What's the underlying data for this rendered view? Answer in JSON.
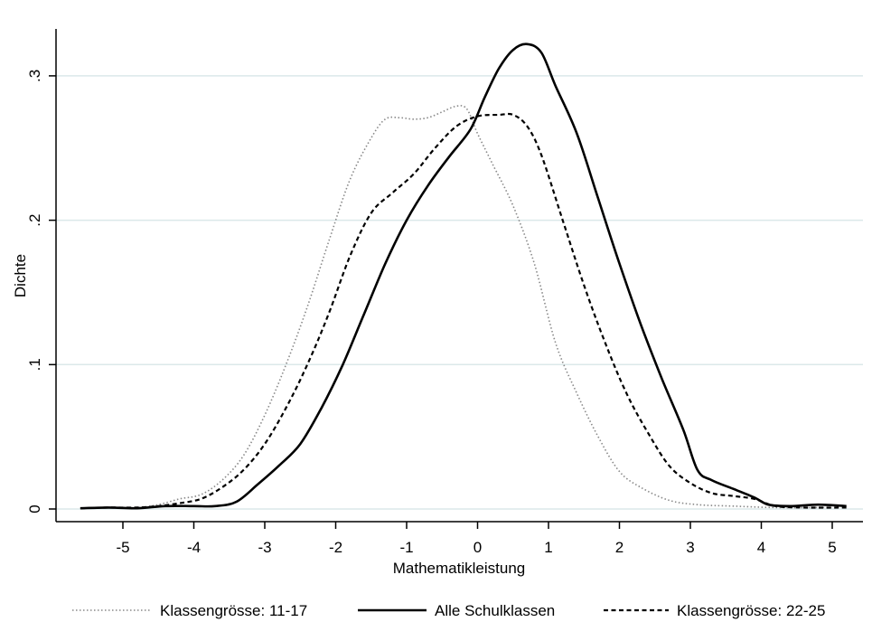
{
  "chart_data": {
    "type": "line",
    "title": "",
    "xlabel": "Mathematikleistung",
    "ylabel": "Dichte",
    "xlim": [
      -5.75,
      5.25
    ],
    "ylim": [
      0,
      0.33
    ],
    "x_ticks": [
      -5,
      -4,
      -3,
      -2,
      -1,
      0,
      1,
      2,
      3,
      4,
      5
    ],
    "x_tick_labels": [
      "-5",
      "-4",
      "-3",
      "-2",
      "-1",
      "0",
      "1",
      "2",
      "3",
      "4",
      "5"
    ],
    "y_ticks": [
      0,
      0.1,
      0.2,
      0.3
    ],
    "y_tick_labels": [
      "0",
      ".1",
      ".2",
      ".3"
    ],
    "grid": true,
    "legend_position": "bottom",
    "series": [
      {
        "name": "Klassengrösse: 11-17",
        "style": "dotted",
        "color": "#888888",
        "points": [
          [
            -5.6,
            0.0005
          ],
          [
            -5.2,
            0.001
          ],
          [
            -4.8,
            0.001
          ],
          [
            -4.5,
            0.003
          ],
          [
            -4.2,
            0.007
          ],
          [
            -3.9,
            0.01
          ],
          [
            -3.6,
            0.02
          ],
          [
            -3.3,
            0.037
          ],
          [
            -3.0,
            0.065
          ],
          [
            -2.7,
            0.1
          ],
          [
            -2.4,
            0.14
          ],
          [
            -2.1,
            0.185
          ],
          [
            -1.8,
            0.228
          ],
          [
            -1.5,
            0.257
          ],
          [
            -1.3,
            0.27
          ],
          [
            -1.1,
            0.271
          ],
          [
            -0.9,
            0.27
          ],
          [
            -0.7,
            0.271
          ],
          [
            -0.5,
            0.275
          ],
          [
            -0.3,
            0.279
          ],
          [
            -0.15,
            0.277
          ],
          [
            0.0,
            0.26
          ],
          [
            0.2,
            0.24
          ],
          [
            0.5,
            0.21
          ],
          [
            0.8,
            0.17
          ],
          [
            1.1,
            0.115
          ],
          [
            1.4,
            0.08
          ],
          [
            1.7,
            0.05
          ],
          [
            2.0,
            0.026
          ],
          [
            2.3,
            0.015
          ],
          [
            2.7,
            0.006
          ],
          [
            3.1,
            0.003
          ],
          [
            3.6,
            0.002
          ],
          [
            4.2,
            0.001
          ],
          [
            5.0,
            0.001
          ]
        ]
      },
      {
        "name": "Alle Schulklassen",
        "style": "solid",
        "color": "#000000",
        "points": [
          [
            -5.6,
            0.0005
          ],
          [
            -5.2,
            0.001
          ],
          [
            -4.8,
            0.0005
          ],
          [
            -4.4,
            0.002
          ],
          [
            -4.0,
            0.002
          ],
          [
            -3.7,
            0.002
          ],
          [
            -3.4,
            0.005
          ],
          [
            -3.1,
            0.017
          ],
          [
            -2.8,
            0.03
          ],
          [
            -2.5,
            0.045
          ],
          [
            -2.2,
            0.07
          ],
          [
            -1.9,
            0.1
          ],
          [
            -1.6,
            0.135
          ],
          [
            -1.3,
            0.17
          ],
          [
            -1.0,
            0.2
          ],
          [
            -0.7,
            0.224
          ],
          [
            -0.4,
            0.244
          ],
          [
            -0.1,
            0.263
          ],
          [
            0.1,
            0.285
          ],
          [
            0.3,
            0.305
          ],
          [
            0.5,
            0.318
          ],
          [
            0.7,
            0.322
          ],
          [
            0.9,
            0.316
          ],
          [
            1.1,
            0.293
          ],
          [
            1.4,
            0.26
          ],
          [
            1.7,
            0.215
          ],
          [
            2.0,
            0.17
          ],
          [
            2.3,
            0.128
          ],
          [
            2.6,
            0.09
          ],
          [
            2.9,
            0.055
          ],
          [
            3.1,
            0.027
          ],
          [
            3.3,
            0.02
          ],
          [
            3.6,
            0.014
          ],
          [
            3.9,
            0.008
          ],
          [
            4.1,
            0.003
          ],
          [
            4.4,
            0.002
          ],
          [
            4.8,
            0.003
          ],
          [
            5.2,
            0.002
          ]
        ]
      },
      {
        "name": "Klassengrösse: 22-25",
        "style": "dashed",
        "color": "#000000",
        "points": [
          [
            -5.6,
            0.0005
          ],
          [
            -5.2,
            0.001
          ],
          [
            -4.8,
            0.001
          ],
          [
            -4.5,
            0.002
          ],
          [
            -4.2,
            0.004
          ],
          [
            -3.9,
            0.007
          ],
          [
            -3.6,
            0.015
          ],
          [
            -3.3,
            0.027
          ],
          [
            -3.0,
            0.045
          ],
          [
            -2.7,
            0.07
          ],
          [
            -2.4,
            0.1
          ],
          [
            -2.1,
            0.135
          ],
          [
            -1.8,
            0.175
          ],
          [
            -1.5,
            0.205
          ],
          [
            -1.2,
            0.219
          ],
          [
            -0.9,
            0.232
          ],
          [
            -0.6,
            0.25
          ],
          [
            -0.3,
            0.265
          ],
          [
            0.0,
            0.272
          ],
          [
            0.3,
            0.273
          ],
          [
            0.5,
            0.273
          ],
          [
            0.7,
            0.265
          ],
          [
            0.9,
            0.245
          ],
          [
            1.2,
            0.2
          ],
          [
            1.5,
            0.155
          ],
          [
            1.8,
            0.115
          ],
          [
            2.1,
            0.08
          ],
          [
            2.4,
            0.053
          ],
          [
            2.7,
            0.03
          ],
          [
            3.0,
            0.018
          ],
          [
            3.3,
            0.011
          ],
          [
            3.6,
            0.009
          ],
          [
            3.9,
            0.007
          ],
          [
            4.2,
            0.002
          ],
          [
            4.6,
            0.001
          ],
          [
            5.2,
            0.001
          ]
        ]
      }
    ]
  }
}
